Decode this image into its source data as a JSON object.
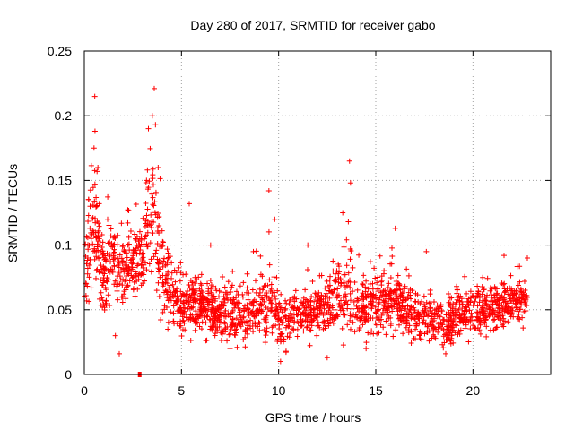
{
  "chart_data": {
    "type": "scatter",
    "title": "Day 280 of 2017, SRMTID for receiver gabo",
    "xlabel": "GPS time / hours",
    "ylabel": "SRMTID / TECUs",
    "xlim": [
      0,
      24
    ],
    "ylim": [
      0,
      0.25
    ],
    "xticks": [
      0,
      5,
      10,
      15,
      20
    ],
    "xtick_labels": [
      "0",
      "5",
      "10",
      "15",
      "20"
    ],
    "yticks": [
      0,
      0.05,
      0.1,
      0.15,
      0.2,
      0.25
    ],
    "ytick_labels": [
      "0",
      "0.05",
      "0.1",
      "0.15",
      "0.2",
      "0.25"
    ],
    "grid": true,
    "marker": "+",
    "color": "#ff0000",
    "envelope": {
      "hours": [
        0,
        0.3,
        0.5,
        1,
        1.5,
        2,
        2.5,
        3,
        3.3,
        3.6,
        4,
        4.5,
        5,
        6,
        7,
        8,
        9,
        9.5,
        10,
        11,
        12,
        13,
        13.7,
        14,
        15,
        16,
        17,
        18,
        18.7,
        19,
        20,
        21,
        22,
        22.8
      ],
      "median_tecu": [
        0.07,
        0.11,
        0.12,
        0.075,
        0.09,
        0.08,
        0.085,
        0.09,
        0.13,
        0.12,
        0.08,
        0.06,
        0.055,
        0.055,
        0.045,
        0.045,
        0.05,
        0.06,
        0.04,
        0.045,
        0.05,
        0.055,
        0.065,
        0.05,
        0.055,
        0.06,
        0.045,
        0.045,
        0.035,
        0.045,
        0.05,
        0.05,
        0.055,
        0.06
      ],
      "spread_tecu": [
        0.02,
        0.04,
        0.04,
        0.025,
        0.025,
        0.025,
        0.02,
        0.025,
        0.045,
        0.05,
        0.03,
        0.02,
        0.02,
        0.02,
        0.02,
        0.02,
        0.02,
        0.03,
        0.02,
        0.02,
        0.02,
        0.02,
        0.04,
        0.02,
        0.02,
        0.025,
        0.015,
        0.015,
        0.015,
        0.015,
        0.015,
        0.015,
        0.015,
        0.015
      ]
    },
    "series": [
      {
        "name": "SRMTID",
        "notable_points": [
          {
            "x": 0.1,
            "y": 0.07
          },
          {
            "x": 0.3,
            "y": 0.13
          },
          {
            "x": 0.5,
            "y": 0.175
          },
          {
            "x": 0.55,
            "y": 0.188
          },
          {
            "x": 0.7,
            "y": 0.16
          },
          {
            "x": 1.2,
            "y": 0.12
          },
          {
            "x": 1.5,
            "y": 0.1
          },
          {
            "x": 1.6,
            "y": 0.03
          },
          {
            "x": 1.8,
            "y": 0.016
          },
          {
            "x": 2.5,
            "y": 0.09
          },
          {
            "x": 3.2,
            "y": 0.15
          },
          {
            "x": 3.3,
            "y": 0.19
          },
          {
            "x": 3.5,
            "y": 0.2
          },
          {
            "x": 3.6,
            "y": 0.221
          },
          {
            "x": 3.8,
            "y": 0.16
          },
          {
            "x": 4.3,
            "y": 0.035
          },
          {
            "x": 5.4,
            "y": 0.132
          },
          {
            "x": 6.5,
            "y": 0.1
          },
          {
            "x": 7.5,
            "y": 0.02
          },
          {
            "x": 8.7,
            "y": 0.095
          },
          {
            "x": 9.5,
            "y": 0.142
          },
          {
            "x": 9.8,
            "y": 0.12
          },
          {
            "x": 10.1,
            "y": 0.01
          },
          {
            "x": 11.5,
            "y": 0.1
          },
          {
            "x": 12.5,
            "y": 0.013
          },
          {
            "x": 12.8,
            "y": 0.08
          },
          {
            "x": 13.3,
            "y": 0.125
          },
          {
            "x": 13.65,
            "y": 0.165
          },
          {
            "x": 13.7,
            "y": 0.148
          },
          {
            "x": 14.5,
            "y": 0.02
          },
          {
            "x": 16.0,
            "y": 0.113
          },
          {
            "x": 17.6,
            "y": 0.095
          },
          {
            "x": 18.6,
            "y": 0.016
          },
          {
            "x": 20.5,
            "y": 0.075
          },
          {
            "x": 21.6,
            "y": 0.092
          },
          {
            "x": 22.8,
            "y": 0.09
          }
        ]
      }
    ],
    "gap_marker": {
      "x": 2.85,
      "y": 0
    }
  }
}
